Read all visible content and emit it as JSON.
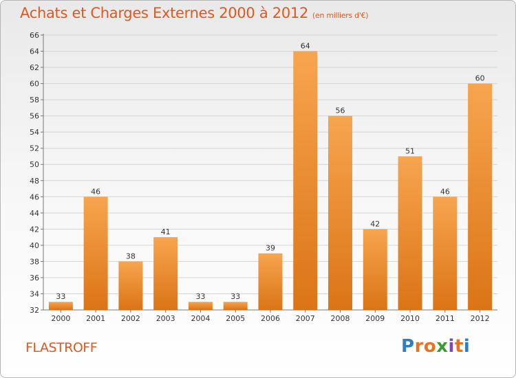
{
  "header": {
    "title": "Achats et Charges Externes 2000 à 2012",
    "unit": "(en milliers d'€)"
  },
  "footer": {
    "commune": "FLASTROFF",
    "brand": "Proxiti",
    "brand_letters": [
      {
        "ch": "P",
        "color": "#2f7ec2"
      },
      {
        "ch": "r",
        "color": "#e8731c"
      },
      {
        "ch": "o",
        "color": "#e8731c"
      },
      {
        "ch": "x",
        "color": "#3a9c2e"
      },
      {
        "ch": "i",
        "color": "#7a4bb2"
      },
      {
        "ch": "t",
        "color": "#e8731c"
      },
      {
        "ch": "i",
        "color": "#2f7ec2"
      }
    ]
  },
  "colors": {
    "bar_light": "#f7a54f",
    "bar_dark": "#db7416",
    "title": "#e0581e",
    "grid": "#d4d4d4"
  },
  "chart_data": {
    "type": "bar",
    "title": "Achats et Charges Externes 2000 à 2012",
    "subtitle": "(en milliers d'€)",
    "xlabel": "",
    "ylabel": "",
    "categories": [
      "2000",
      "2001",
      "2002",
      "2003",
      "2004",
      "2005",
      "2006",
      "2007",
      "2008",
      "2009",
      "2010",
      "2011",
      "2012"
    ],
    "values": [
      33,
      46,
      38,
      41,
      33,
      33,
      39,
      64,
      56,
      42,
      51,
      46,
      60
    ],
    "ylim": [
      32,
      66
    ],
    "ytick_step": 2,
    "grid": true,
    "legend": "none"
  }
}
